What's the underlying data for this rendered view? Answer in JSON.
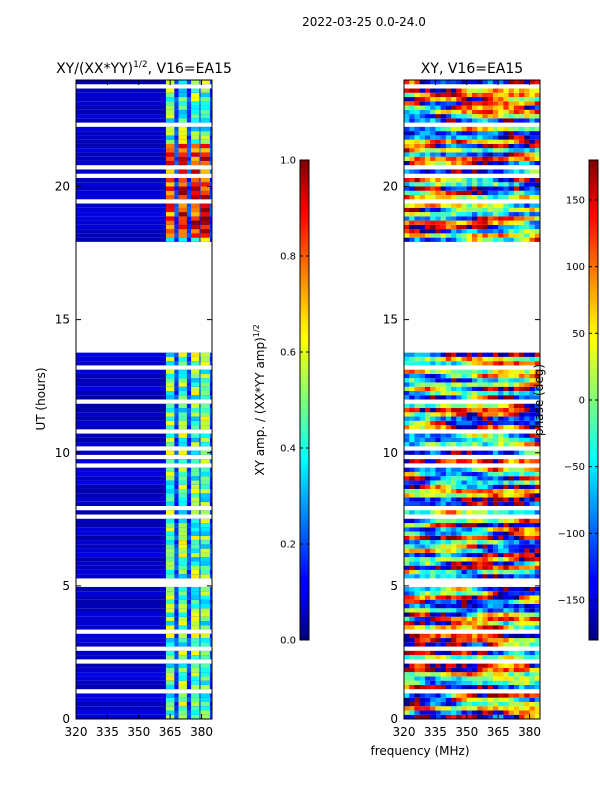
{
  "chart_data": {
    "type": "heatmap",
    "suptitle": "2022-03-25 0.0-24.0",
    "xlabel": "frequency (MHz)",
    "panels": [
      {
        "title_main": "XY/(XX*YY)",
        "title_exp": "1/2",
        "title_rest": ", V16=EA15",
        "ylabel": "UT (hours)",
        "xlim": [
          320,
          385
        ],
        "ylim": [
          0,
          24
        ],
        "x_ticks": [
          "320",
          "335",
          "350",
          "365",
          "380"
        ],
        "x_tick_values": [
          320,
          335,
          350,
          365,
          380
        ],
        "y_ticks": [
          "0",
          "5",
          "10",
          "15",
          "20"
        ],
        "y_tick_values": [
          0,
          5,
          10,
          15,
          20
        ],
        "colorbar": {
          "label_main": "XY amp. / (XX*YY amp)",
          "label_exp": "1/2",
          "range": [
            0.0,
            1.0
          ],
          "ticks": [
            "0.0",
            "0.2",
            "0.4",
            "0.6",
            "0.8",
            "1.0"
          ],
          "tick_values": [
            0.0,
            0.2,
            0.4,
            0.6,
            0.8,
            1.0
          ]
        },
        "channel_blocks_mhz": [
          [
            363,
            367
          ],
          [
            369,
            373
          ],
          [
            375,
            379
          ],
          [
            379.5,
            384
          ]
        ],
        "data_gap_hours": [
          [
            13.7,
            17.8
          ]
        ]
      },
      {
        "title_main": "XY, V16=EA15",
        "ylabel": "",
        "xlim": [
          320,
          385
        ],
        "ylim": [
          0,
          24
        ],
        "x_ticks": [
          "320",
          "335",
          "350",
          "365",
          "380"
        ],
        "x_tick_values": [
          320,
          335,
          350,
          365,
          380
        ],
        "y_ticks": [
          "0",
          "5",
          "10",
          "15",
          "20"
        ],
        "y_tick_values": [
          0,
          5,
          10,
          15,
          20
        ],
        "colorbar": {
          "label_main": "phase (deg)",
          "range": [
            -180,
            180
          ],
          "ticks": [
            "−150",
            "−100",
            "−50",
            "0",
            "50",
            "100",
            "150"
          ],
          "tick_values": [
            -150,
            -100,
            -50,
            0,
            50,
            100,
            150
          ]
        },
        "data_gap_hours": [
          [
            13.7,
            17.8
          ]
        ]
      }
    ]
  }
}
